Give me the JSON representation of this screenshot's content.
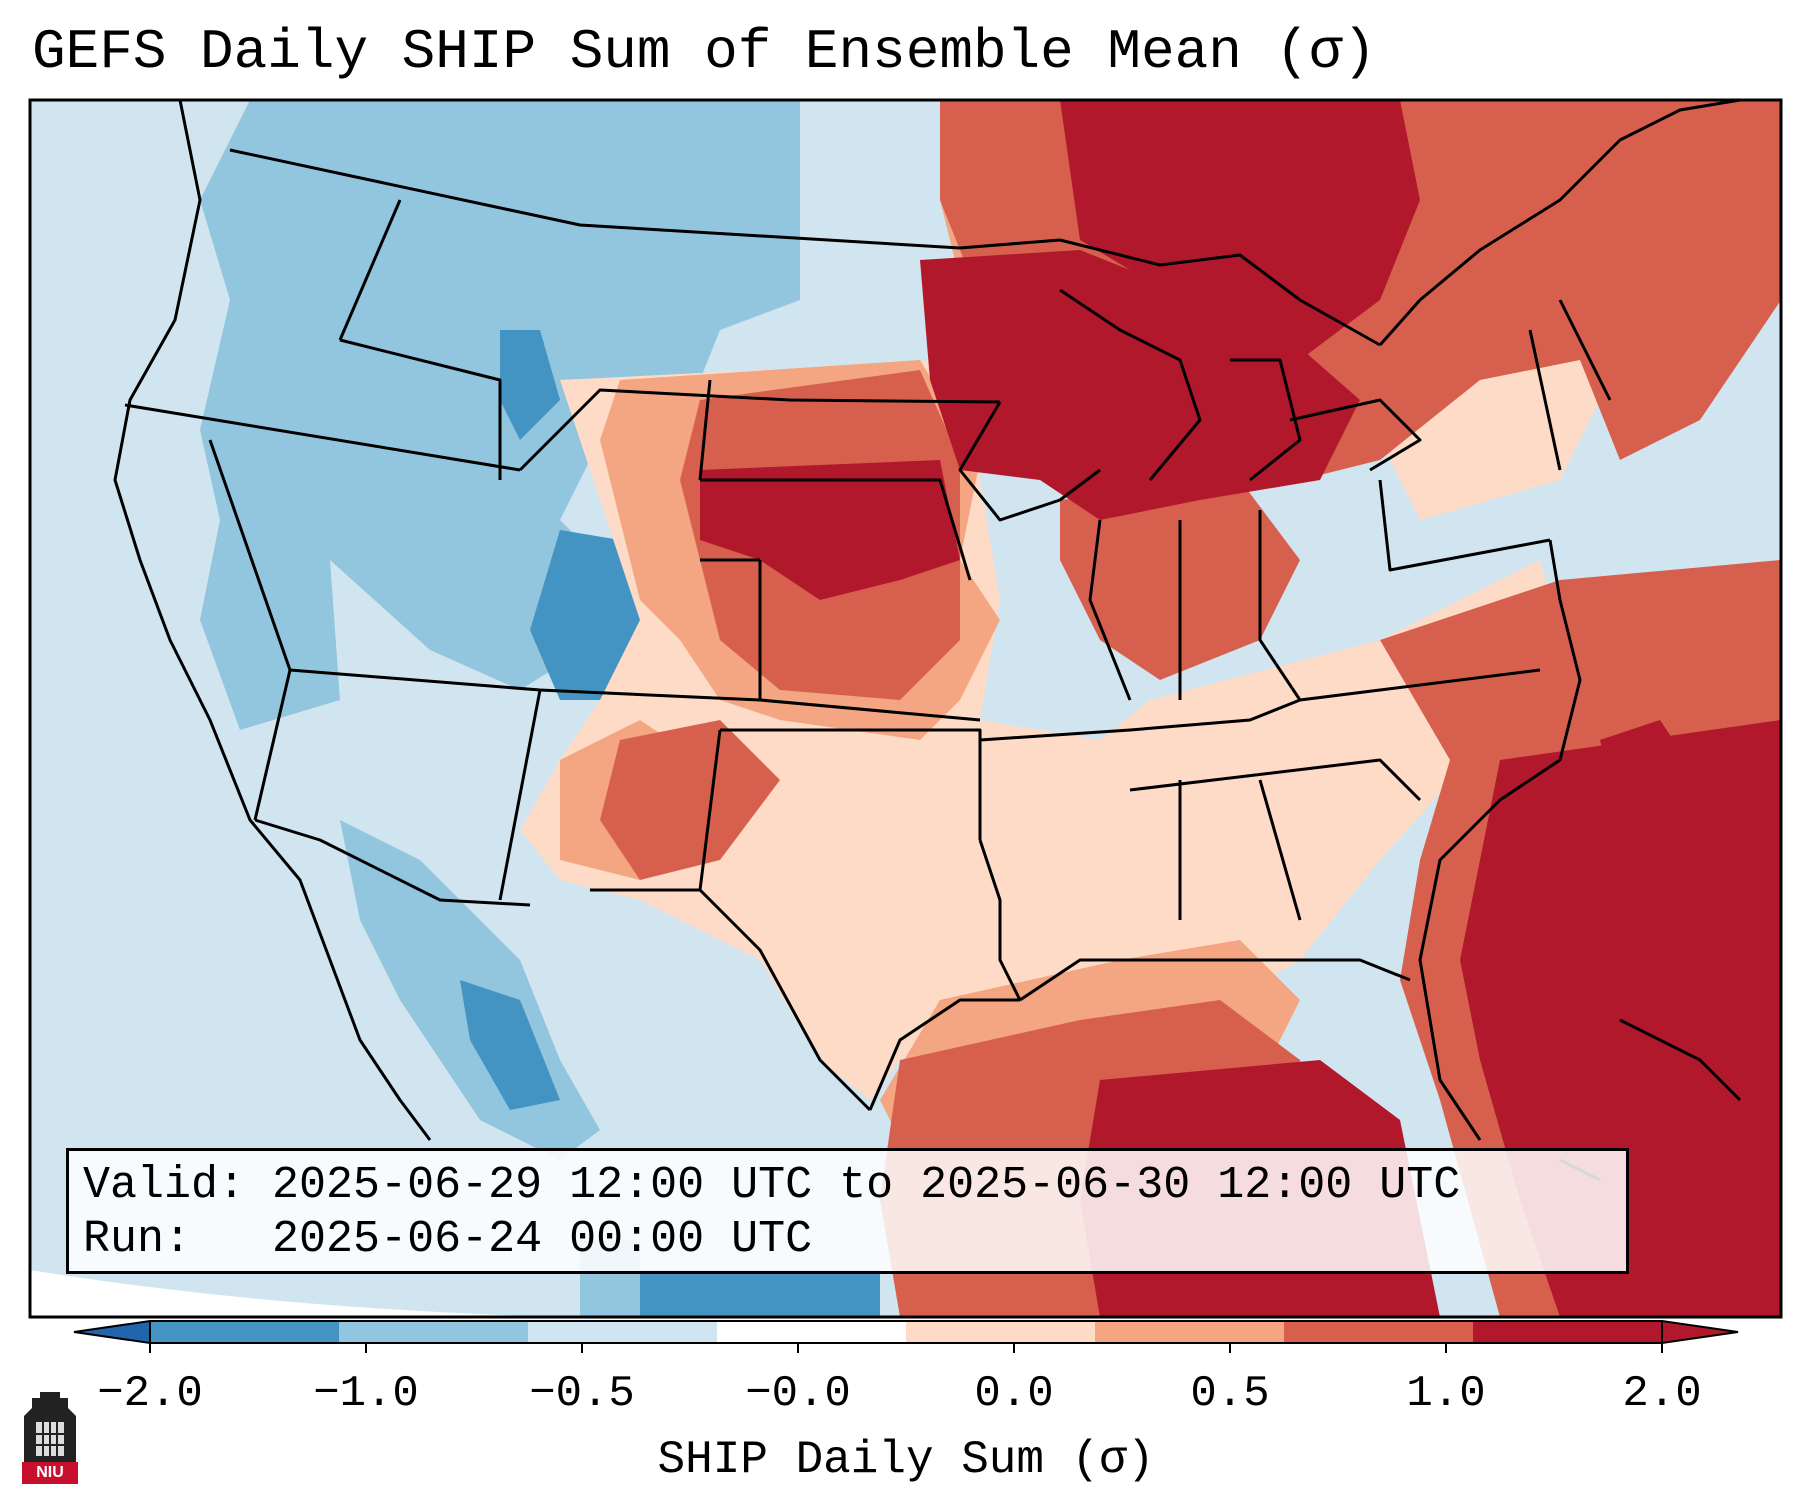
{
  "title": "GEFS Daily SHIP Sum of Ensemble Mean (σ)",
  "info": {
    "valid_label": "Valid:",
    "valid_value": "2025-06-29 12:00 UTC to 2025-06-30 12:00 UTC",
    "run_label": "Run:",
    "run_value": "2025-06-24 00:00 UTC"
  },
  "colorbar": {
    "label": "SHIP Daily Sum (σ)",
    "ticks": [
      "−2.0",
      "−1.0",
      "−0.5",
      "−0.0",
      "0.0",
      "0.5",
      "1.0",
      "2.0"
    ],
    "colors": [
      "#4393c3",
      "#92c5de",
      "#d1e5f0",
      "#ffffff",
      "#fddbc7",
      "#f4a582",
      "#d6604d",
      "#b2182b"
    ],
    "extend_min_color": "#2166ac",
    "extend_max_color": "#b2182b"
  },
  "logo": {
    "text": "NIU",
    "accent": "#c8102e"
  }
}
